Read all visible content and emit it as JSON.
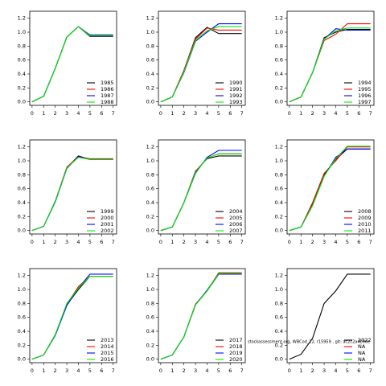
{
  "chart_data": [
    {
      "type": "line",
      "x": [
        0,
        1,
        2,
        3,
        4,
        5,
        6,
        7
      ],
      "xlim": [
        -0.2,
        7.3
      ],
      "xticks": [
        0,
        1,
        2,
        3,
        4,
        5,
        6,
        7
      ],
      "ylim": [
        -0.05,
        1.3
      ],
      "yticks": [
        {
          "value": 0,
          "label": "0.0"
        },
        0.2,
        0.4,
        0.6,
        0.8,
        {
          "value": 1,
          "label": "1.0"
        },
        1.2
      ],
      "grid": false,
      "legend": "lower right",
      "series": [
        {
          "name": "1985",
          "color": "#000000",
          "values": [
            0,
            0.08,
            0.48,
            0.93,
            1.08,
            0.94,
            0.94,
            0.94
          ]
        },
        {
          "name": "1986",
          "color": "#ff0000",
          "values": [
            0,
            0.08,
            0.48,
            0.93,
            1.08,
            0.95,
            0.95,
            0.95
          ]
        },
        {
          "name": "1987",
          "color": "#0000ff",
          "values": [
            0,
            0.08,
            0.48,
            0.93,
            1.08,
            0.96,
            0.96,
            0.96
          ]
        },
        {
          "name": "1988",
          "color": "#00ee00",
          "values": [
            0,
            0.08,
            0.48,
            0.93,
            1.08,
            0.95,
            0.95,
            0.95
          ]
        }
      ]
    },
    {
      "type": "line",
      "x": [
        0,
        1,
        2,
        3,
        4,
        5,
        6,
        7
      ],
      "xlim": [
        -0.2,
        7.3
      ],
      "xticks": [
        0,
        1,
        2,
        3,
        4,
        5,
        6,
        7
      ],
      "ylim": [
        -0.05,
        1.3
      ],
      "yticks": [
        {
          "value": 0,
          "label": "0.0"
        },
        0.2,
        0.4,
        0.6,
        0.8,
        {
          "value": 1,
          "label": "1.0"
        },
        1.2
      ],
      "grid": false,
      "legend": "lower right",
      "series": [
        {
          "name": "1990",
          "color": "#000000",
          "values": [
            0,
            0.07,
            0.45,
            0.92,
            1.07,
            0.98,
            0.98,
            0.98
          ]
        },
        {
          "name": "1991",
          "color": "#ff0000",
          "values": [
            0,
            0.07,
            0.45,
            0.9,
            1.06,
            1.03,
            1.03,
            1.03
          ]
        },
        {
          "name": "1992",
          "color": "#0000ff",
          "values": [
            0,
            0.07,
            0.42,
            0.87,
            1.0,
            1.12,
            1.12,
            1.12
          ]
        },
        {
          "name": "1993",
          "color": "#00ee00",
          "values": [
            0,
            0.07,
            0.43,
            0.88,
            1.02,
            1.08,
            1.08,
            1.08
          ]
        }
      ]
    },
    {
      "type": "line",
      "x": [
        0,
        1,
        2,
        3,
        4,
        5,
        6,
        7
      ],
      "xlim": [
        -0.2,
        7.3
      ],
      "xticks": [
        0,
        1,
        2,
        3,
        4,
        5,
        6,
        7
      ],
      "ylim": [
        -0.05,
        1.3
      ],
      "yticks": [
        {
          "value": 0,
          "label": "0.0"
        },
        0.2,
        0.4,
        0.6,
        0.8,
        {
          "value": 1,
          "label": "1.0"
        },
        1.2
      ],
      "grid": false,
      "legend": "lower right",
      "series": [
        {
          "name": "1994",
          "color": "#000000",
          "values": [
            0,
            0.07,
            0.42,
            0.92,
            1.0,
            1.04,
            1.04,
            1.04
          ]
        },
        {
          "name": "1995",
          "color": "#ff0000",
          "values": [
            0,
            0.07,
            0.42,
            0.88,
            0.97,
            1.12,
            1.12,
            1.12
          ]
        },
        {
          "name": "1996",
          "color": "#0000ff",
          "values": [
            0,
            0.07,
            0.42,
            0.9,
            1.05,
            1.03,
            1.03,
            1.03
          ]
        },
        {
          "name": "1997",
          "color": "#00ee00",
          "values": [
            0,
            0.07,
            0.42,
            0.9,
            1.02,
            1.06,
            1.06,
            1.06
          ]
        }
      ]
    },
    {
      "type": "line",
      "x": [
        0,
        1,
        2,
        3,
        4,
        5,
        6,
        7
      ],
      "xlim": [
        -0.2,
        7.3
      ],
      "xticks": [
        0,
        1,
        2,
        3,
        4,
        5,
        6,
        7
      ],
      "ylim": [
        -0.05,
        1.3
      ],
      "yticks": [
        {
          "value": 0,
          "label": "0.0"
        },
        0.2,
        0.4,
        0.6,
        0.8,
        {
          "value": 1,
          "label": "1.0"
        },
        1.2
      ],
      "grid": false,
      "legend": "lower right",
      "series": [
        {
          "name": "1999",
          "color": "#000000",
          "values": [
            0,
            0.06,
            0.42,
            0.9,
            1.07,
            1.02,
            1.02,
            1.02
          ]
        },
        {
          "name": "2000",
          "color": "#ff0000",
          "values": [
            0,
            0.06,
            0.42,
            0.91,
            1.06,
            1.03,
            1.03,
            1.03
          ]
        },
        {
          "name": "2001",
          "color": "#0000ff",
          "values": [
            0,
            0.06,
            0.41,
            0.89,
            1.06,
            1.02,
            1.02,
            1.02
          ]
        },
        {
          "name": "2002",
          "color": "#00ee00",
          "values": [
            0,
            0.06,
            0.42,
            0.9,
            1.05,
            1.02,
            1.02,
            1.02
          ]
        }
      ]
    },
    {
      "type": "line",
      "x": [
        0,
        1,
        2,
        3,
        4,
        5,
        6,
        7
      ],
      "xlim": [
        -0.2,
        7.3
      ],
      "xticks": [
        0,
        1,
        2,
        3,
        4,
        5,
        6,
        7
      ],
      "ylim": [
        -0.05,
        1.3
      ],
      "yticks": [
        {
          "value": 0,
          "label": "0.0"
        },
        0.2,
        0.4,
        0.6,
        0.8,
        {
          "value": 1,
          "label": "1.0"
        },
        1.2
      ],
      "grid": false,
      "legend": "lower right",
      "series": [
        {
          "name": "2004",
          "color": "#000000",
          "values": [
            0,
            0.05,
            0.4,
            0.85,
            1.03,
            1.07,
            1.07,
            1.07
          ]
        },
        {
          "name": "2005",
          "color": "#ff0000",
          "values": [
            0,
            0.05,
            0.4,
            0.84,
            1.04,
            1.1,
            1.1,
            1.1
          ]
        },
        {
          "name": "2006",
          "color": "#0000ff",
          "values": [
            0,
            0.05,
            0.4,
            0.82,
            1.05,
            1.15,
            1.15,
            1.15
          ]
        },
        {
          "name": "2007",
          "color": "#00ee00",
          "values": [
            0,
            0.05,
            0.4,
            0.83,
            1.04,
            1.1,
            1.1,
            1.1
          ]
        }
      ]
    },
    {
      "type": "line",
      "x": [
        0,
        1,
        2,
        3,
        4,
        5,
        6,
        7
      ],
      "xlim": [
        -0.2,
        7.3
      ],
      "xticks": [
        0,
        1,
        2,
        3,
        4,
        5,
        6,
        7
      ],
      "ylim": [
        -0.05,
        1.3
      ],
      "yticks": [
        {
          "value": 0,
          "label": "0.0"
        },
        0.2,
        0.4,
        0.6,
        0.8,
        {
          "value": 1,
          "label": "1.0"
        },
        1.2
      ],
      "grid": false,
      "legend": "lower right",
      "series": [
        {
          "name": "2008",
          "color": "#000000",
          "values": [
            0,
            0.05,
            0.38,
            0.8,
            1.02,
            1.17,
            1.17,
            1.17
          ]
        },
        {
          "name": "2009",
          "color": "#ff0000",
          "values": [
            0,
            0.05,
            0.4,
            0.82,
            1.0,
            1.2,
            1.2,
            1.2
          ]
        },
        {
          "name": "2010",
          "color": "#0000ff",
          "values": [
            0,
            0.05,
            0.36,
            0.78,
            1.05,
            1.17,
            1.17,
            1.17
          ]
        },
        {
          "name": "2011",
          "color": "#00ee00",
          "values": [
            0,
            0.05,
            0.36,
            0.78,
            1.03,
            1.21,
            1.21,
            1.21
          ]
        }
      ]
    },
    {
      "type": "line",
      "x": [
        0,
        1,
        2,
        3,
        4,
        5,
        6,
        7
      ],
      "xlim": [
        -0.2,
        7.3
      ],
      "xticks": [
        0,
        1,
        2,
        3,
        4,
        5,
        6,
        7
      ],
      "ylim": [
        -0.05,
        1.3
      ],
      "yticks": [
        {
          "value": 0,
          "label": "0.0"
        },
        0.2,
        0.4,
        0.6,
        0.8,
        {
          "value": 1,
          "label": "1.0"
        },
        1.2
      ],
      "grid": false,
      "legend": "lower right",
      "series": [
        {
          "name": "2013",
          "color": "#000000",
          "values": [
            0,
            0.06,
            0.35,
            0.78,
            1.0,
            1.19,
            1.19,
            1.19
          ]
        },
        {
          "name": "2014",
          "color": "#ff0000",
          "values": [
            0,
            0.06,
            0.35,
            0.79,
            1.04,
            1.19,
            1.19,
            1.19
          ]
        },
        {
          "name": "2015",
          "color": "#0000ff",
          "values": [
            0,
            0.06,
            0.34,
            0.77,
            1.02,
            1.22,
            1.22,
            1.22
          ]
        },
        {
          "name": "2016",
          "color": "#00ee00",
          "values": [
            0,
            0.06,
            0.35,
            0.8,
            1.02,
            1.19,
            1.19,
            1.19
          ]
        }
      ]
    },
    {
      "type": "line",
      "x": [
        0,
        1,
        2,
        3,
        4,
        5,
        6,
        7
      ],
      "xlim": [
        -0.2,
        7.3
      ],
      "xticks": [
        0,
        1,
        2,
        3,
        4,
        5,
        6,
        7
      ],
      "ylim": [
        -0.05,
        1.3
      ],
      "yticks": [
        {
          "value": 0,
          "label": "0.0"
        },
        0.2,
        0.4,
        0.6,
        0.8,
        {
          "value": 1,
          "label": "1.0"
        },
        1.2
      ],
      "grid": false,
      "legend": "lower right",
      "series": [
        {
          "name": "2017",
          "color": "#000000",
          "values": [
            0,
            0.06,
            0.32,
            0.78,
            0.98,
            1.22,
            1.22,
            1.22
          ]
        },
        {
          "name": "2018",
          "color": "#ff0000",
          "values": [
            0,
            0.06,
            0.32,
            0.79,
            0.98,
            1.24,
            1.24,
            1.24
          ]
        },
        {
          "name": "2019",
          "color": "#0000ff",
          "values": [
            0,
            0.06,
            0.32,
            0.78,
            0.99,
            1.22,
            1.22,
            1.22
          ]
        },
        {
          "name": "2020",
          "color": "#00ee00",
          "values": [
            0,
            0.06,
            0.32,
            0.78,
            0.98,
            1.23,
            1.23,
            1.23
          ]
        }
      ]
    },
    {
      "type": "line",
      "x": [
        0,
        1,
        2,
        3,
        4,
        5,
        6,
        7
      ],
      "xlim": [
        -0.2,
        7.3
      ],
      "xticks": [
        0,
        1,
        2,
        3,
        4,
        5,
        6,
        7
      ],
      "ylim": [
        -0.05,
        1.3
      ],
      "yticks": [
        {
          "value": 0,
          "label": "0.0"
        },
        0.2,
        0.4,
        0.6,
        0.8,
        {
          "value": 1,
          "label": "1.0"
        },
        1.2
      ],
      "grid": false,
      "legend": "lower right",
      "annotation": "stockassessment.org, WBCod_22, r15959 , git: ac2c2a4b9de",
      "series": [
        {
          "name": "2022",
          "color": "#000000",
          "values": [
            0,
            0.07,
            0.3,
            0.8,
            0.98,
            1.22,
            1.22,
            1.22
          ]
        },
        {
          "name": "NA",
          "color": "#ff0000",
          "values": [
            null,
            null,
            null,
            null,
            null,
            null,
            null,
            null
          ]
        },
        {
          "name": "NA",
          "color": "#0000ff",
          "values": [
            null,
            null,
            null,
            null,
            null,
            null,
            null,
            null
          ]
        },
        {
          "name": "NA",
          "color": "#00ee00",
          "values": [
            null,
            null,
            null,
            null,
            null,
            null,
            null,
            null
          ]
        }
      ]
    }
  ]
}
